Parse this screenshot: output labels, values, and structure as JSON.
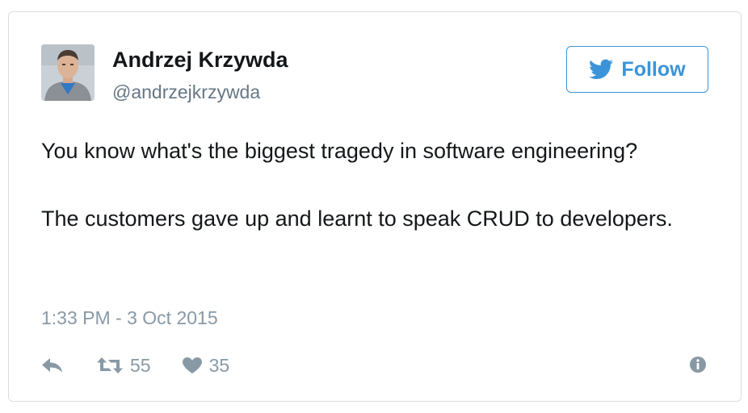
{
  "author": {
    "name": "Andrzej Krzywda",
    "handle": "@andrzejkrzywda",
    "avatar_icon": "avatar-photo"
  },
  "follow_button": {
    "label": "Follow",
    "icon": "twitter-bird-icon",
    "color": "#3b94d9"
  },
  "tweet": {
    "paragraphs": [
      "You know what's the biggest tragedy in software engineering?",
      "The customers gave up and learnt to speak CRUD to developers."
    ],
    "timestamp": "1:33 PM - 3 Oct 2015"
  },
  "actions": {
    "reply_icon": "reply-icon",
    "retweet_icon": "retweet-icon",
    "retweet_count": "55",
    "like_icon": "heart-icon",
    "like_count": "35",
    "info_icon": "info-icon"
  },
  "colors": {
    "text": "#14171a",
    "secondary": "#657786",
    "muted": "#8899a6",
    "border": "#d9dee2"
  }
}
